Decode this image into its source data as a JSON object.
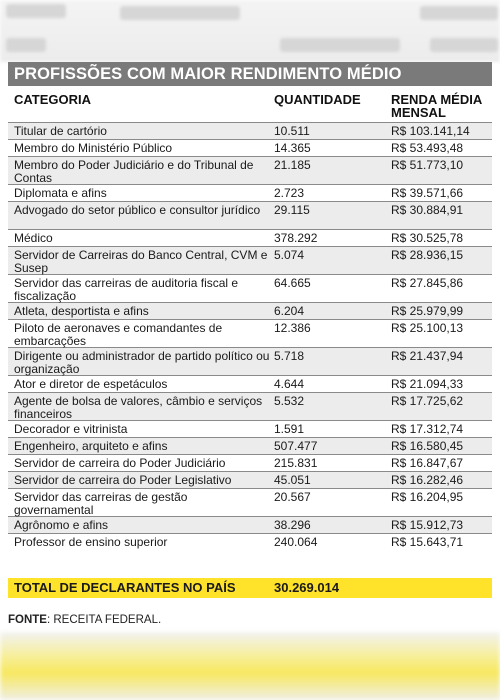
{
  "title": "PROFISSÕES COM MAIOR RENDIMENTO MÉDIO",
  "columns": {
    "category": "CATEGORIA",
    "quantity": "QUANTIDADE",
    "income_line1": "RENDA MÉDIA",
    "income_line2": "MENSAL"
  },
  "rows": [
    {
      "category": "Titular de cartório",
      "quantity": "10.511",
      "income": "R$ 103.141,14"
    },
    {
      "category": "Membro do Ministério Público",
      "quantity": "14.365",
      "income": "R$ 53.493,48"
    },
    {
      "category": "Membro do Poder Judiciário e do Tribunal de Contas",
      "quantity": "21.185",
      "income": "R$ 51.773,10"
    },
    {
      "category": "Diplomata e afins",
      "quantity": "2.723",
      "income": "R$ 39.571,66"
    },
    {
      "category": "Advogado do setor público e consultor jurídico",
      "quantity": "29.115",
      "income": "R$ 30.884,91"
    },
    {
      "category": "Médico",
      "quantity": "378.292",
      "income": "R$ 30.525,78"
    },
    {
      "category": "Servidor de Carreiras do Banco Central, CVM e Susep",
      "quantity": "5.074",
      "income": "R$ 28.936,15"
    },
    {
      "category": "Servidor das carreiras de auditoria fiscal e fiscalização",
      "quantity": "64.665",
      "income": "R$ 27.845,86"
    },
    {
      "category": "Atleta, desportista e afins",
      "quantity": "6.204",
      "income": "R$ 25.979,99"
    },
    {
      "category": "Piloto de aeronaves e comandantes de embarcações",
      "quantity": "12.386",
      "income": "R$ 25.100,13"
    },
    {
      "category": "Dirigente ou administrador de partido político ou organização",
      "quantity": "5.718",
      "income": "R$ 21.437,94"
    },
    {
      "category": "Ator e diretor de espetáculos",
      "quantity": "4.644",
      "income": "R$ 21.094,33"
    },
    {
      "category": "Agente de bolsa de valores, câmbio e serviços financeiros",
      "quantity": "5.532",
      "income": "R$ 17.725,62"
    },
    {
      "category": "Decorador e vitrinista",
      "quantity": "1.591",
      "income": "R$ 17.312,74"
    },
    {
      "category": "Engenheiro, arquiteto e afins",
      "quantity": "507.477",
      "income": "R$ 16.580,45"
    },
    {
      "category": "Servidor de carreira do Poder Judiciário",
      "quantity": "215.831",
      "income": "R$ 16.847,67"
    },
    {
      "category": "Servidor de carreira do Poder Legislativo",
      "quantity": "45.051",
      "income": "R$ 16.282,46"
    },
    {
      "category": "Servidor das carreiras de gestão governamental",
      "quantity": "20.567",
      "income": "R$ 16.204,95"
    },
    {
      "category": "Agrônomo e afins",
      "quantity": "38.296",
      "income": "R$ 15.912,73"
    },
    {
      "category": "Professor de ensino superior",
      "quantity": "240.064",
      "income": "R$ 15.643,71"
    }
  ],
  "total": {
    "label": "TOTAL DE DECLARANTES NO PAÍS",
    "value": "30.269.014"
  },
  "source": {
    "label": "FONTE",
    "text": ": RECEITA FEDERAL."
  },
  "colors": {
    "header_bg": "#7a7a7a",
    "alt_row": "#ececec",
    "total_bg": "#ffe32a"
  }
}
